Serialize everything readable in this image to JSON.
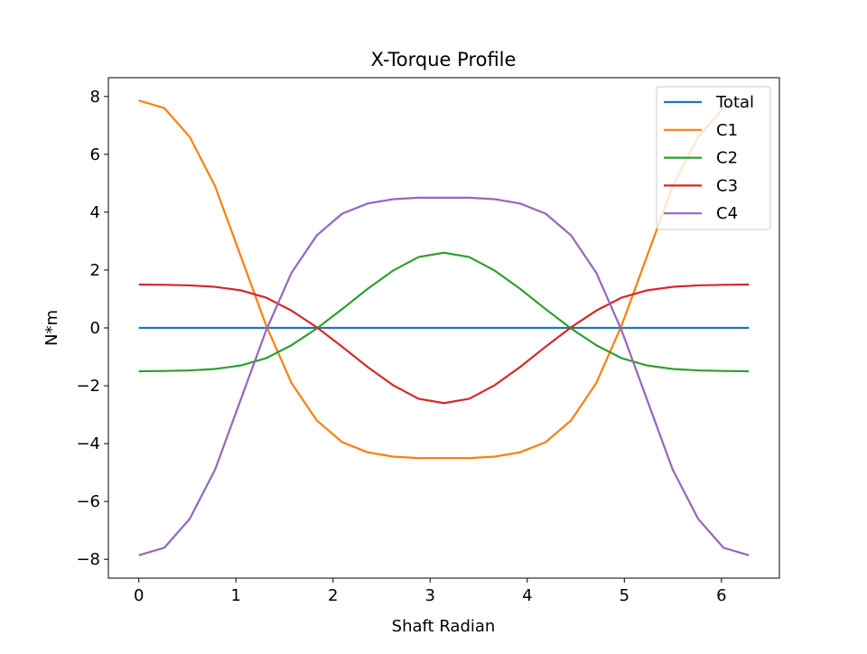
{
  "chart_data": {
    "type": "line",
    "title": "X-Torque Profile",
    "x_label": "Shaft Radian",
    "y_label": "N*m",
    "x": [
      0,
      0.262,
      0.524,
      0.785,
      1.047,
      1.309,
      1.571,
      1.833,
      2.094,
      2.356,
      2.618,
      2.88,
      3.142,
      3.403,
      3.665,
      3.927,
      4.189,
      4.451,
      4.712,
      4.974,
      5.236,
      5.498,
      5.76,
      6.021,
      6.283
    ],
    "series": [
      {
        "name": "Total",
        "color": "#1f77b4",
        "values": [
          0,
          0,
          0,
          0,
          0,
          0,
          0,
          0,
          0,
          0,
          0,
          0,
          0,
          0,
          0,
          0,
          0,
          0,
          0,
          0,
          0,
          0,
          0,
          0,
          0
        ]
      },
      {
        "name": "C1",
        "color": "#ff7f0e",
        "values": [
          7.86,
          7.6,
          6.6,
          4.9,
          2.5,
          0.1,
          -1.9,
          -3.2,
          -3.95,
          -4.3,
          -4.45,
          -4.5,
          -4.5,
          -4.5,
          -4.45,
          -4.3,
          -3.95,
          -3.2,
          -1.9,
          0.1,
          2.5,
          4.9,
          6.6,
          7.6,
          7.86
        ]
      },
      {
        "name": "C2",
        "color": "#2ca02c",
        "values": [
          -1.5,
          -1.49,
          -1.47,
          -1.42,
          -1.3,
          -1.05,
          -0.6,
          -0.02,
          0.65,
          1.35,
          1.98,
          2.45,
          2.6,
          2.45,
          1.98,
          1.35,
          0.65,
          -0.02,
          -0.6,
          -1.05,
          -1.3,
          -1.42,
          -1.47,
          -1.49,
          -1.5
        ]
      },
      {
        "name": "C3",
        "color": "#d62728",
        "values": [
          1.5,
          1.49,
          1.47,
          1.42,
          1.3,
          1.05,
          0.6,
          0.02,
          -0.65,
          -1.35,
          -1.98,
          -2.45,
          -2.6,
          -2.45,
          -1.98,
          -1.35,
          -0.65,
          0.02,
          0.6,
          1.05,
          1.3,
          1.42,
          1.47,
          1.49,
          1.5
        ]
      },
      {
        "name": "C4",
        "color": "#9467bd",
        "values": [
          -7.86,
          -7.6,
          -6.6,
          -4.9,
          -2.5,
          -0.1,
          1.9,
          3.2,
          3.95,
          4.3,
          4.45,
          4.5,
          4.5,
          4.5,
          4.45,
          4.3,
          3.95,
          3.2,
          1.9,
          -0.1,
          -2.5,
          -4.9,
          -6.6,
          -7.6,
          -7.86
        ]
      }
    ],
    "xlim": [
      -0.314,
      6.597
    ],
    "ylim": [
      -8.65,
      8.65
    ],
    "xticks": [
      0,
      1,
      2,
      3,
      4,
      5,
      6
    ],
    "yticks": [
      {
        "value": -8,
        "label": "−8"
      },
      {
        "value": -6,
        "label": "−6"
      },
      {
        "value": -4,
        "label": "−4"
      },
      {
        "value": -2,
        "label": "−2"
      },
      0,
      2,
      4,
      6,
      8
    ],
    "legend": "upper right"
  }
}
